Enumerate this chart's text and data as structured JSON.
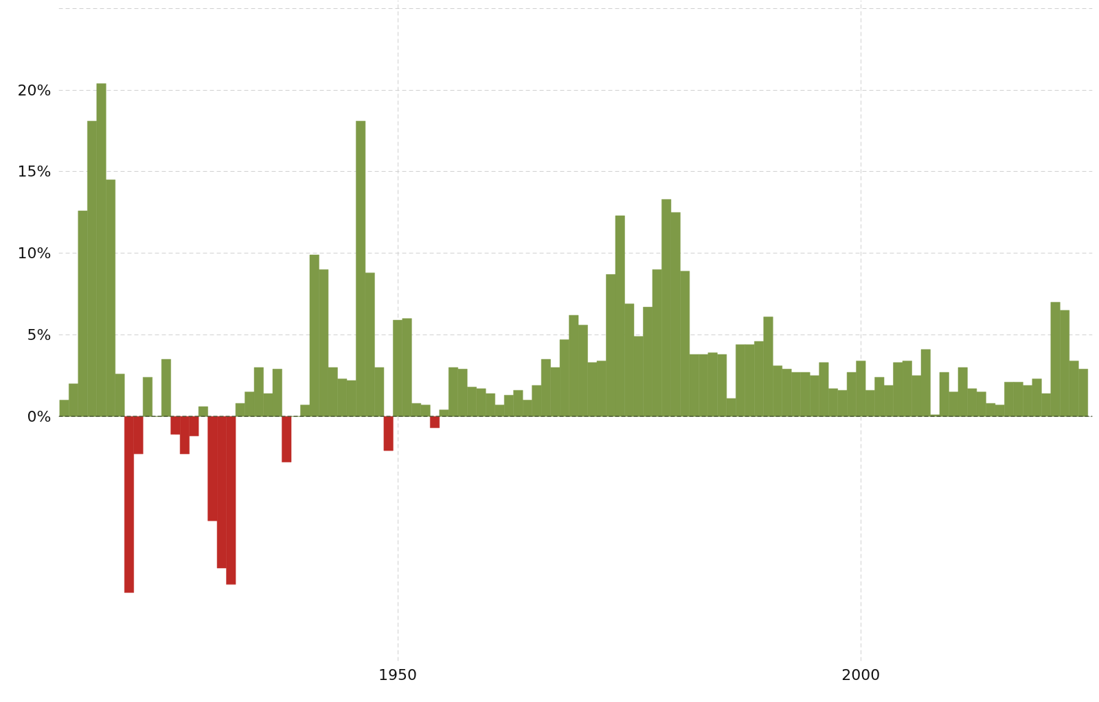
{
  "chart_data": {
    "type": "bar",
    "x": [
      1914,
      1915,
      1916,
      1917,
      1918,
      1919,
      1920,
      1921,
      1922,
      1923,
      1924,
      1925,
      1926,
      1927,
      1928,
      1929,
      1930,
      1931,
      1932,
      1933,
      1934,
      1935,
      1936,
      1937,
      1938,
      1939,
      1940,
      1941,
      1942,
      1943,
      1944,
      1945,
      1946,
      1947,
      1948,
      1949,
      1950,
      1951,
      1952,
      1953,
      1954,
      1955,
      1956,
      1957,
      1958,
      1959,
      1960,
      1961,
      1962,
      1963,
      1964,
      1965,
      1966,
      1967,
      1968,
      1969,
      1970,
      1971,
      1972,
      1973,
      1974,
      1975,
      1976,
      1977,
      1978,
      1979,
      1980,
      1981,
      1982,
      1983,
      1984,
      1985,
      1986,
      1987,
      1988,
      1989,
      1990,
      1991,
      1992,
      1993,
      1994,
      1995,
      1996,
      1997,
      1998,
      1999,
      2000,
      2001,
      2002,
      2003,
      2004,
      2005,
      2006,
      2007,
      2008,
      2009,
      2010,
      2011,
      2012,
      2013,
      2014,
      2015,
      2016,
      2017,
      2018,
      2019,
      2020,
      2021,
      2022,
      2023,
      2024
    ],
    "values": [
      1.0,
      2.0,
      12.6,
      18.1,
      20.4,
      14.5,
      2.6,
      -10.8,
      -2.3,
      2.4,
      0.0,
      3.5,
      -1.1,
      -2.3,
      -1.2,
      0.6,
      -6.4,
      -9.3,
      -10.3,
      0.8,
      1.5,
      3.0,
      1.4,
      2.9,
      -2.8,
      0.0,
      0.7,
      9.9,
      9.0,
      3.0,
      2.3,
      2.2,
      18.1,
      8.8,
      3.0,
      -2.1,
      5.9,
      6.0,
      0.8,
      0.7,
      -0.7,
      0.4,
      3.0,
      2.9,
      1.8,
      1.7,
      1.4,
      0.7,
      1.3,
      1.6,
      1.0,
      1.9,
      3.5,
      3.0,
      4.7,
      6.2,
      5.6,
      3.3,
      3.4,
      8.7,
      12.3,
      6.9,
      4.9,
      6.7,
      9.0,
      13.3,
      12.5,
      8.9,
      3.8,
      3.8,
      3.9,
      3.8,
      1.1,
      4.4,
      4.4,
      4.6,
      6.1,
      3.1,
      2.9,
      2.7,
      2.7,
      2.5,
      3.3,
      1.7,
      1.6,
      2.7,
      3.4,
      1.6,
      2.4,
      1.9,
      3.3,
      3.4,
      2.5,
      4.1,
      0.1,
      2.7,
      1.5,
      3.0,
      1.7,
      1.5,
      0.8,
      0.7,
      2.1,
      2.1,
      1.9,
      2.3,
      1.4,
      7.0,
      6.5,
      3.4,
      2.9
    ],
    "colors": [
      "#7e9a47",
      "#7e9a47",
      "#7e9a47",
      "#7e9a47",
      "#7e9a47",
      "#7e9a47",
      "#7e9a47",
      "#be2a26",
      "#be2a26",
      "#7e9a47",
      "#7e9a47",
      "#7e9a47",
      "#be2a26",
      "#be2a26",
      "#be2a26",
      "#7e9a47",
      "#be2a26",
      "#be2a26",
      "#be2a26",
      "#7e9a47",
      "#7e9a47",
      "#7e9a47",
      "#7e9a47",
      "#7e9a47",
      "#be2a26",
      "#7e9a47",
      "#7e9a47",
      "#7e9a47",
      "#7e9a47",
      "#7e9a47",
      "#7e9a47",
      "#7e9a47",
      "#7e9a47",
      "#7e9a47",
      "#7e9a47",
      "#be2a26",
      "#7e9a47",
      "#7e9a47",
      "#7e9a47",
      "#7e9a47",
      "#be2a26",
      "#7e9a47",
      "#7e9a47",
      "#7e9a47",
      "#7e9a47",
      "#7e9a47",
      "#7e9a47",
      "#7e9a47",
      "#7e9a47",
      "#7e9a47",
      "#7e9a47",
      "#7e9a47",
      "#7e9a47",
      "#7e9a47",
      "#7e9a47",
      "#7e9a47",
      "#7e9a47",
      "#7e9a47",
      "#7e9a47",
      "#7e9a47",
      "#7e9a47",
      "#7e9a47",
      "#7e9a47",
      "#7e9a47",
      "#7e9a47",
      "#7e9a47",
      "#7e9a47",
      "#7e9a47",
      "#7e9a47",
      "#7e9a47",
      "#7e9a47",
      "#7e9a47",
      "#7e9a47",
      "#7e9a47",
      "#7e9a47",
      "#7e9a47",
      "#7e9a47",
      "#7e9a47",
      "#7e9a47",
      "#7e9a47",
      "#7e9a47",
      "#7e9a47",
      "#7e9a47",
      "#7e9a47",
      "#7e9a47",
      "#7e9a47",
      "#7e9a47",
      "#7e9a47",
      "#7e9a47",
      "#7e9a47",
      "#7e9a47",
      "#7e9a47",
      "#7e9a47",
      "#7e9a47",
      "#7e9a47",
      "#7e9a47",
      "#7e9a47",
      "#7e9a47",
      "#7e9a47",
      "#7e9a47",
      "#7e9a47",
      "#7e9a47",
      "#7e9a47",
      "#7e9a47",
      "#7e9a47",
      "#7e9a47",
      "#7e9a47",
      "#7e9a47",
      "#7e9a47",
      "#7e9a47",
      "#7e9a47"
    ],
    "xlim": [
      1913.4,
      2025
    ],
    "xticks": [
      1950,
      2000
    ],
    "ylim": [
      -15,
      25.5
    ],
    "yticks": [
      {
        "value": 0,
        "label": "0%"
      },
      {
        "value": 5,
        "label": "5%"
      },
      {
        "value": 10,
        "label": "10%"
      },
      {
        "value": 15,
        "label": "15%"
      },
      {
        "value": 20,
        "label": "20%"
      },
      {
        "value": 25,
        "label": null
      }
    ],
    "grid": true,
    "ref_lines": [
      {
        "axis": "y",
        "value": 0,
        "label": null,
        "color": "#3d4a2a",
        "line_style": "dashed"
      }
    ]
  }
}
